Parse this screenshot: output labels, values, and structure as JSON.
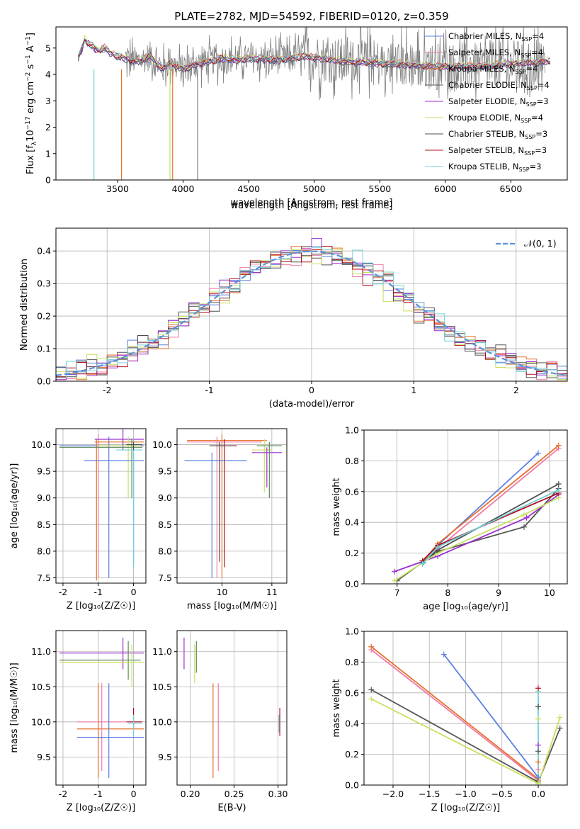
{
  "title": "PLATE=2782, MJD=54592, FIBERID=0120, z=0.359",
  "colors": {
    "Chabrier MILES": "#5b7fe0",
    "Salpeter MILES": "#f07ca8",
    "Kroupa MILES": "#e8702a",
    "Chabrier ELODIE": "#555555",
    "Salpeter ELODIE": "#9b30d0",
    "Kroupa ELODIE": "#c8e060",
    "Chabrier STELIB": "#4c4c4c",
    "Salpeter STELIB": "#b01020",
    "Kroupa STELIB": "#70d0d8",
    "normal": "#5b8fd8",
    "noise": "#808080",
    "green": "#5a8a5a"
  },
  "chart_data": [
    {
      "type": "line",
      "panel": "spectrum",
      "title": "PLATE=2782, MJD=54592, FIBERID=0120, z=0.359",
      "xlabel": "wavelength [Angstrom, rest frame]",
      "ylabel_main": "Flux [f",
      "ylabel_sub": "λ",
      "ylabel_rest": "10",
      "ylabel_exp": "−17",
      "ylabel_tail": " erg cm",
      "ylabel_exp2": "−2",
      "ylabel_tail2": " s",
      "ylabel_exp3": "−1",
      "ylabel_tail3": " A",
      "ylabel_exp4": "−1",
      "ylabel_end": "]",
      "xlim": [
        3030,
        6930
      ],
      "ylim": [
        0,
        5.8
      ],
      "xticks": [
        3500,
        4000,
        4500,
        5000,
        5500,
        6000,
        6500
      ],
      "yticks": [
        0,
        1,
        2,
        3,
        4,
        5
      ],
      "grid": false,
      "legend_position": "right",
      "legend": [
        {
          "name": "Chabrier MILES",
          "nssp": "4"
        },
        {
          "name": "Salpeter MILES",
          "nssp": "4"
        },
        {
          "name": "Kroupa MILES",
          "nssp": "4"
        },
        {
          "name": "Chabrier ELODIE",
          "nssp": "4"
        },
        {
          "name": "Salpeter ELODIE",
          "nssp": "3"
        },
        {
          "name": "Kroupa ELODIE",
          "nssp": "4"
        },
        {
          "name": "Chabrier STELIB",
          "nssp": "3"
        },
        {
          "name": "Salpeter STELIB",
          "nssp": "3"
        },
        {
          "name": "Kroupa STELIB",
          "nssp": "3"
        }
      ],
      "legend_prefix": "N",
      "legend_sub": "SSP",
      "model_curve": {
        "x": [
          3200,
          3250,
          3300,
          3350,
          3400,
          3450,
          3500,
          3550,
          3600,
          3650,
          3700,
          3750,
          3800,
          3850,
          3900,
          3950,
          4000,
          4100,
          4200,
          4300,
          4400,
          4500,
          4600,
          4700,
          4800,
          4900,
          5000,
          5200,
          5400,
          5600,
          5800,
          6000,
          6200,
          6400,
          6600,
          6800
        ],
        "y": [
          4.6,
          5.3,
          5.1,
          4.9,
          5.0,
          4.8,
          4.7,
          4.6,
          4.55,
          4.5,
          4.6,
          4.7,
          4.4,
          4.2,
          4.5,
          4.3,
          4.2,
          4.4,
          4.5,
          4.6,
          4.55,
          4.6,
          4.6,
          4.55,
          4.6,
          4.7,
          4.65,
          4.5,
          4.45,
          4.4,
          4.35,
          4.3,
          4.3,
          4.35,
          4.45,
          4.5
        ]
      },
      "drops": [
        3320,
        3530,
        3900,
        3920,
        4110
      ]
    },
    {
      "type": "line",
      "panel": "residual-histogram",
      "xlabel": "(data-model)/error",
      "ylabel": "Normed distribution",
      "xlim": [
        -2.5,
        2.5
      ],
      "ylim": [
        0,
        0.47
      ],
      "xticks": [
        -2,
        -1,
        0,
        1,
        2
      ],
      "yticks": [
        0.0,
        0.1,
        0.2,
        0.3,
        0.4
      ],
      "grid": true,
      "legend": "𝒩(0, 1)",
      "legend_position": "top-right",
      "bin_width": 0.1
    },
    {
      "type": "scatter",
      "panel": "age-vs-Z",
      "xlabel": "Z [log₁₀(Z/Z☉)]",
      "ylabel": "age  [log₁₀(age/yr)]",
      "xlim": [
        -2.2,
        0.35
      ],
      "ylim": [
        7.4,
        10.3
      ],
      "xticks": [
        -2,
        -1,
        0
      ],
      "yticks": [
        7.5,
        8.0,
        8.5,
        9.0,
        9.5,
        10.0
      ],
      "grid": true
    },
    {
      "type": "scatter",
      "panel": "age-vs-mass",
      "xlabel": "mass [log₁₀(M/M☉)]",
      "xlim": [
        9.1,
        11.3
      ],
      "ylim": [
        7.4,
        10.3
      ],
      "xticks": [
        10,
        11
      ],
      "yticks": [
        7.5,
        8.0,
        8.5,
        9.0,
        9.5,
        10.0
      ],
      "grid": true
    },
    {
      "type": "line",
      "panel": "massweight-vs-age",
      "xlabel": "age  [log₁₀(age/yr)]",
      "ylabel": "mass weight",
      "xlim": [
        6.35,
        10.35
      ],
      "ylim": [
        0,
        1.0
      ],
      "xticks": [
        7,
        8,
        9,
        10
      ],
      "yticks": [
        0.0,
        0.2,
        0.4,
        0.6,
        0.8,
        1.0
      ],
      "grid": true,
      "series": [
        {
          "name": "Chabrier MILES",
          "points": [
            [
              7.52,
              0.14
            ],
            [
              7.8,
              0.25
            ],
            [
              9.78,
              0.85
            ]
          ]
        },
        {
          "name": "Salpeter MILES",
          "points": [
            [
              7.5,
              0.13
            ],
            [
              7.8,
              0.23
            ],
            [
              10.18,
              0.88
            ]
          ]
        },
        {
          "name": "Kroupa MILES",
          "points": [
            [
              7.5,
              0.14
            ],
            [
              7.8,
              0.26
            ],
            [
              10.18,
              0.9
            ]
          ]
        },
        {
          "name": "Chabrier ELODIE",
          "points": [
            [
              7.0,
              0.02
            ],
            [
              7.8,
              0.21
            ],
            [
              9.5,
              0.37
            ],
            [
              10.18,
              0.62
            ]
          ]
        },
        {
          "name": "Salpeter ELODIE",
          "points": [
            [
              6.95,
              0.08
            ],
            [
              7.8,
              0.18
            ],
            [
              9.55,
              0.43
            ],
            [
              10.18,
              0.58
            ]
          ]
        },
        {
          "name": "Kroupa ELODIE",
          "points": [
            [
              6.95,
              0.02
            ],
            [
              7.8,
              0.2
            ],
            [
              9.5,
              0.45
            ],
            [
              10.18,
              0.56
            ]
          ]
        },
        {
          "name": "Chabrier STELIB",
          "points": [
            [
              7.5,
              0.14
            ],
            [
              7.8,
              0.22
            ],
            [
              10.18,
              0.65
            ]
          ]
        },
        {
          "name": "Salpeter STELIB",
          "points": [
            [
              7.5,
              0.15
            ],
            [
              7.8,
              0.25
            ],
            [
              10.18,
              0.59
            ]
          ]
        },
        {
          "name": "Kroupa STELIB",
          "points": [
            [
              7.5,
              0.13
            ],
            [
              7.8,
              0.24
            ],
            [
              10.18,
              0.61
            ]
          ]
        }
      ]
    },
    {
      "type": "scatter",
      "panel": "mass-vs-Z",
      "xlabel": "Z [log₁₀(Z/Z☉)]",
      "ylabel": "mass [log₁₀(M/M☉)]",
      "xlim": [
        -2.2,
        0.35
      ],
      "ylim": [
        9.1,
        11.3
      ],
      "xticks": [
        -2,
        -1,
        0
      ],
      "yticks": [
        9.5,
        10.0,
        10.5,
        11.0
      ],
      "grid": true
    },
    {
      "type": "scatter",
      "panel": "mass-vs-EBV",
      "xlabel": "E(B-V)",
      "xlim": [
        0.185,
        0.31
      ],
      "ylim": [
        9.1,
        11.3
      ],
      "xticks": [
        0.2,
        0.25,
        0.3
      ],
      "yticks": [
        9.5,
        10.0,
        10.5,
        11.0
      ],
      "grid": true
    },
    {
      "type": "line",
      "panel": "massweight-vs-Z",
      "xlabel": "Z [log₁₀(Z/Z☉)]",
      "ylabel": "mass weight",
      "xlim": [
        -2.4,
        0.4
      ],
      "ylim": [
        0,
        1.0
      ],
      "xticks": [
        -2.0,
        -1.5,
        -1.0,
        -0.5,
        0.0
      ],
      "yticks": [
        0.0,
        0.2,
        0.4,
        0.6,
        0.8,
        1.0
      ],
      "grid": true,
      "series": [
        {
          "name": "Chabrier MILES",
          "points": [
            [
              -1.3,
              0.85
            ],
            [
              0.0,
              0.05
            ]
          ]
        },
        {
          "name": "Salpeter MILES",
          "points": [
            [
              -2.3,
              0.88
            ],
            [
              0.0,
              0.03
            ]
          ]
        },
        {
          "name": "Kroupa MILES",
          "points": [
            [
              -2.3,
              0.9
            ],
            [
              0.0,
              0.04
            ]
          ]
        },
        {
          "name": "Chabrier ELODIE",
          "points": [
            [
              -2.3,
              0.62
            ],
            [
              0.0,
              0.02
            ],
            [
              0.3,
              0.37
            ]
          ]
        },
        {
          "name": "Kroupa ELODIE",
          "points": [
            [
              -2.3,
              0.56
            ],
            [
              0.0,
              0.01
            ],
            [
              0.3,
              0.44
            ]
          ]
        },
        {
          "name": "Kroupa STELIB",
          "points": [
            [
              0.0,
              0.05
            ],
            [
              0.0,
              0.61
            ]
          ]
        }
      ]
    }
  ]
}
